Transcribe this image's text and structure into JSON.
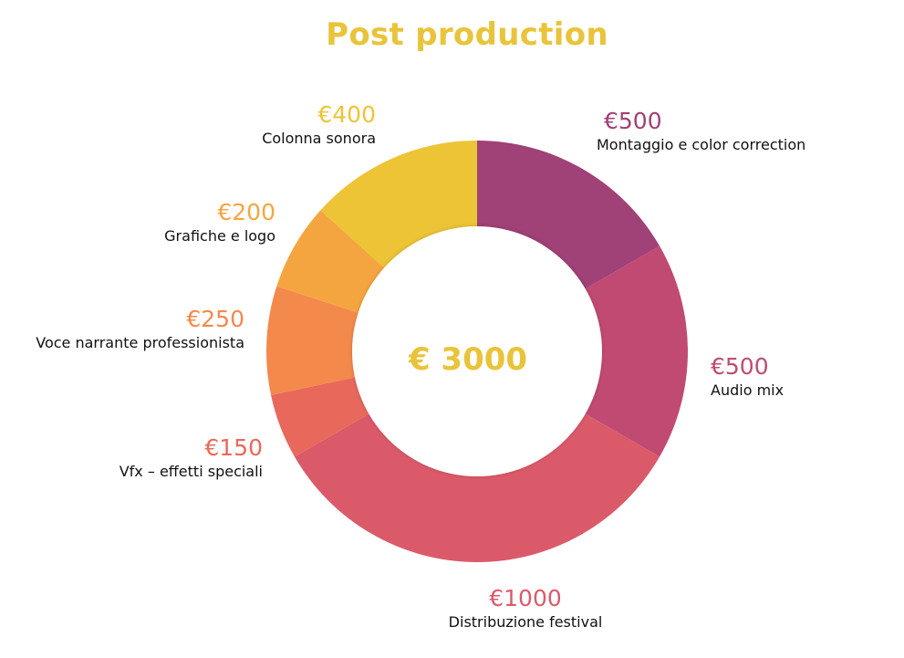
{
  "chart_data": {
    "type": "pie",
    "variant": "donut",
    "title": "Post production",
    "center_label": "€ 3000",
    "currency_symbol": "€",
    "categories": [
      "Montaggio e color correction",
      "Audio mix",
      "Distribuzione festival",
      "Vfx – effetti speciali",
      "Voce narrante professionista",
      "Grafiche e logo",
      "Colonna sonora"
    ],
    "values": [
      500,
      500,
      1000,
      150,
      250,
      200,
      400
    ],
    "colors": [
      "#a04177",
      "#c14a72",
      "#db5a6a",
      "#e8685c",
      "#f4894c",
      "#f5a540",
      "#edc436"
    ],
    "title_color": "#e9c43a",
    "legend": "labels-around"
  }
}
